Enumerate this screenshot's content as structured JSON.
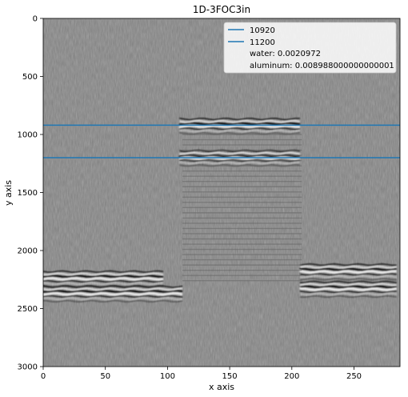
{
  "chart_data": {
    "type": "heatmap",
    "title": "1D-3FOC3in",
    "xlabel": "x axis",
    "ylabel": "y axis",
    "xlim": [
      0,
      287
    ],
    "ylim": [
      3000,
      0
    ],
    "x_ticks": [
      0,
      50,
      100,
      150,
      200,
      250
    ],
    "y_ticks": [
      0,
      500,
      1000,
      1500,
      2000,
      2500,
      3000
    ],
    "colormap": "gray",
    "series": [
      {
        "name": "10920",
        "y": 920,
        "color": "#1f77b4"
      },
      {
        "name": "11200",
        "y": 1200,
        "color": "#1f77b4"
      }
    ],
    "legend_extra": [
      "water: 0.0020972",
      "aluminum: 0.008988000000000001"
    ],
    "legend_position": "top-right",
    "reflectors": [
      {
        "x_start": 0,
        "x_end": 115,
        "y": 2360
      },
      {
        "x_start": 0,
        "x_end": 100,
        "y": 2230
      },
      {
        "x_start": 110,
        "x_end": 210,
        "y": 915
      },
      {
        "x_start": 110,
        "x_end": 210,
        "y": 1190
      },
      {
        "x_start": 207,
        "x_end": 287,
        "y": 2320
      },
      {
        "x_start": 207,
        "x_end": 287,
        "y": 2170
      }
    ]
  }
}
